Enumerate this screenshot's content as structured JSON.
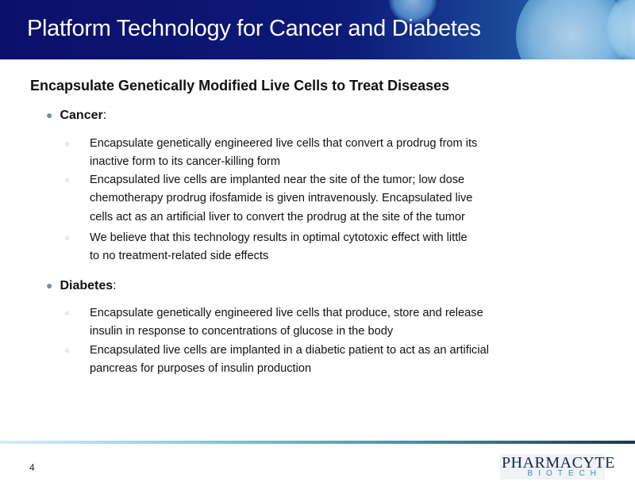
{
  "header": {
    "title": "Platform Technology for Cancer and Diabetes"
  },
  "subtitle": "Encapsulate Genetically Modified Live Cells to Treat Diseases",
  "sections": [
    {
      "label": "Cancer",
      "suffix": ":",
      "items": [
        {
          "lines": [
            "Encapsulate genetically engineered live cells that convert a prodrug from its",
            "inactive form to its cancer-killing form"
          ]
        },
        {
          "lines": [
            "Encapsulated live cells are implanted near the site of the tumor; low dose",
            "chemotherapy prodrug ifosfamide is given intravenously.  Encapsulated live",
            "cells act as an artificial liver to convert the prodrug at the site of the tumor"
          ]
        },
        {
          "lines": [
            "We believe that this technology results in optimal cytotoxic effect with little",
            "to no treatment-related side effects"
          ]
        }
      ]
    },
    {
      "label": "Diabetes",
      "suffix": ":",
      "items": [
        {
          "lines": [
            "Encapsulate genetically engineered live cells that produce, store and release",
            "insulin in response to concentrations of glucose in the body"
          ]
        },
        {
          "lines": [
            "Encapsulated live cells are implanted in a diabetic patient to act as an artificial",
            "pancreas for purposes of insulin production"
          ]
        }
      ]
    }
  ],
  "footer": {
    "page_number": "4",
    "logo": {
      "line1": "PHARMACYTE",
      "line2": "BIOTECH"
    }
  },
  "colors": {
    "header_bg": "#0b0f6b",
    "bullet": "#6f8fb4",
    "logo_blue": "#2a8fd6",
    "logo_navy": "#0e2550"
  }
}
